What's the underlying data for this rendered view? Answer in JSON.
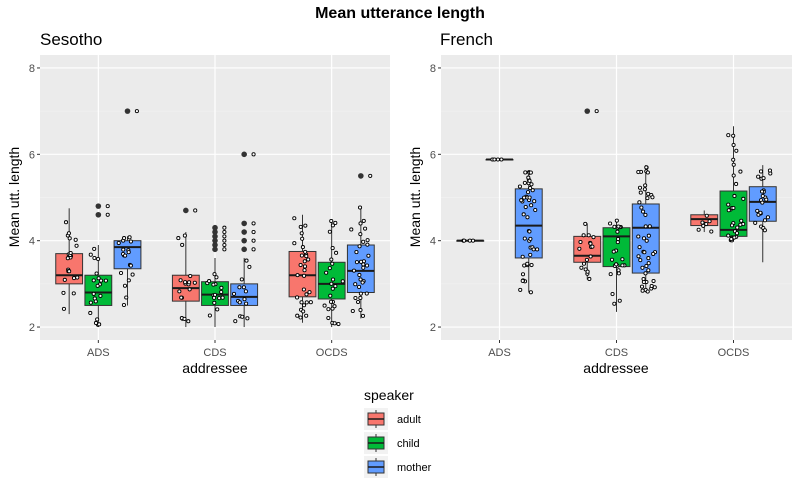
{
  "figure": {
    "title": "Mean utterance length",
    "legend_title": "speaker",
    "legend_position": "bottom",
    "speakers": [
      "adult",
      "child",
      "mother"
    ],
    "colors": {
      "adult": "#F8766D",
      "child": "#00BA38",
      "mother": "#619CFF"
    }
  },
  "chart_data": [
    {
      "type": "box",
      "title": "Sesotho",
      "xlabel": "addressee",
      "ylabel": "Mean utt. length",
      "ylim": [
        1.7,
        8.3
      ],
      "yticks": [
        2,
        4,
        6,
        8
      ],
      "categories": [
        "ADS",
        "CDS",
        "OCDS"
      ],
      "grid": true,
      "series": [
        {
          "name": "adult",
          "boxes": [
            {
              "q1": 3.0,
              "median": 3.2,
              "q3": 3.7,
              "whisker_low": 2.3,
              "whisker_high": 4.75,
              "outliers": []
            },
            {
              "q1": 2.6,
              "median": 2.9,
              "q3": 3.2,
              "whisker_low": 2.0,
              "whisker_high": 4.2,
              "outliers": [
                4.7
              ]
            },
            {
              "q1": 2.7,
              "median": 3.2,
              "q3": 3.75,
              "whisker_low": 2.1,
              "whisker_high": 4.6,
              "outliers": []
            }
          ]
        },
        {
          "name": "child",
          "boxes": [
            {
              "q1": 2.5,
              "median": 2.8,
              "q3": 3.2,
              "whisker_low": 2.0,
              "whisker_high": 3.9,
              "outliers": [
                4.6,
                4.8
              ]
            },
            {
              "q1": 2.5,
              "median": 2.75,
              "q3": 3.05,
              "whisker_low": 2.0,
              "whisker_high": 3.6,
              "outliers": [
                3.8,
                3.9,
                4.0,
                4.1,
                4.2,
                4.3
              ]
            },
            {
              "q1": 2.65,
              "median": 3.0,
              "q3": 3.5,
              "whisker_low": 2.0,
              "whisker_high": 4.5,
              "outliers": []
            }
          ]
        },
        {
          "name": "mother",
          "boxes": [
            {
              "q1": 3.35,
              "median": 3.85,
              "q3": 4.0,
              "whisker_low": 2.5,
              "whisker_high": 4.1,
              "outliers": [
                7.0
              ]
            },
            {
              "q1": 2.5,
              "median": 2.7,
              "q3": 3.0,
              "whisker_low": 2.0,
              "whisker_high": 3.6,
              "outliers": [
                3.8,
                4.0,
                4.2,
                4.4,
                6.0
              ]
            },
            {
              "q1": 2.8,
              "median": 3.3,
              "q3": 3.9,
              "whisker_low": 2.2,
              "whisker_high": 4.8,
              "outliers": [
                5.5
              ]
            }
          ]
        }
      ]
    },
    {
      "type": "box",
      "title": "French",
      "xlabel": "addressee",
      "ylabel": "Mean utt. length",
      "ylim": [
        1.7,
        8.3
      ],
      "yticks": [
        2,
        4,
        6,
        8
      ],
      "categories": [
        "ADS",
        "CDS",
        "OCDS"
      ],
      "grid": true,
      "series": [
        {
          "name": "adult",
          "boxes": [
            {
              "q1": 4.0,
              "median": 4.0,
              "q3": 4.0,
              "whisker_low": 4.0,
              "whisker_high": 4.0,
              "outliers": []
            },
            {
              "q1": 3.5,
              "median": 3.65,
              "q3": 4.1,
              "whisker_low": 3.1,
              "whisker_high": 4.4,
              "outliers": [
                7.0
              ]
            },
            {
              "q1": 4.35,
              "median": 4.5,
              "q3": 4.6,
              "whisker_low": 4.2,
              "whisker_high": 4.7,
              "outliers": []
            }
          ]
        },
        {
          "name": "child",
          "boxes": [
            {
              "q1": 5.88,
              "median": 5.88,
              "q3": 5.88,
              "whisker_low": 5.88,
              "whisker_high": 5.88,
              "outliers": []
            },
            {
              "q1": 3.4,
              "median": 4.1,
              "q3": 4.3,
              "whisker_low": 2.35,
              "whisker_high": 4.5,
              "outliers": []
            },
            {
              "q1": 4.1,
              "median": 4.25,
              "q3": 5.15,
              "whisker_low": 4.0,
              "whisker_high": 6.65,
              "outliers": []
            }
          ]
        },
        {
          "name": "mother",
          "boxes": [
            {
              "q1": 3.6,
              "median": 4.35,
              "q3": 5.2,
              "whisker_low": 2.8,
              "whisker_high": 5.6,
              "outliers": []
            },
            {
              "q1": 3.25,
              "median": 4.3,
              "q3": 4.85,
              "whisker_low": 2.8,
              "whisker_high": 5.75,
              "outliers": []
            },
            {
              "q1": 4.45,
              "median": 4.9,
              "q3": 5.25,
              "whisker_low": 3.5,
              "whisker_high": 5.75,
              "outliers": []
            }
          ]
        }
      ]
    }
  ]
}
